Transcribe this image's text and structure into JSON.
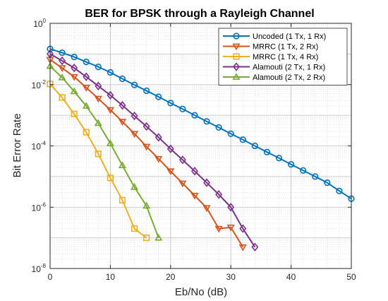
{
  "chart_data": {
    "type": "line",
    "title": "BER for BPSK through  a Rayleigh Channel",
    "xlabel": "Eb/No (dB)",
    "ylabel": "Bit Error Rate",
    "xlim": [
      0,
      50
    ],
    "ylim": [
      1e-08,
      1
    ],
    "yscale": "log",
    "grid": true,
    "minor_grid": true,
    "legend_position": "top-right",
    "x_ticks": [
      0,
      10,
      20,
      30,
      40,
      50
    ],
    "y_ticks": [
      {
        "base": "10",
        "exp": "0"
      },
      {
        "base": "10",
        "exp": "-2"
      },
      {
        "base": "10",
        "exp": "-4"
      },
      {
        "base": "10",
        "exp": "-6"
      },
      {
        "base": "10",
        "exp": "-8"
      }
    ],
    "series": [
      {
        "name": "Uncoded (1 Tx, 1 Rx)",
        "color": "#0072BD",
        "marker": "circle",
        "x": [
          0,
          2,
          4,
          6,
          8,
          10,
          12,
          14,
          16,
          18,
          20,
          22,
          24,
          26,
          28,
          30,
          32,
          34,
          36,
          38,
          40,
          42,
          44,
          46,
          48,
          50
        ],
        "y": [
          0.146,
          0.11,
          0.08,
          0.055,
          0.038,
          0.025,
          0.0155,
          0.0098,
          0.0063,
          0.004,
          0.0025,
          0.0016,
          0.001,
          0.00063,
          0.0004,
          0.00025,
          0.00016,
          0.0001,
          6.3e-05,
          4e-05,
          2.5e-05,
          1.58e-05,
          1e-05,
          6.3e-06,
          3.4e-06,
          1.9e-06
        ]
      },
      {
        "name": "MRRC (1 Tx, 2 Rx)",
        "color": "#D95319",
        "marker": "triangle-down",
        "x": [
          0,
          2,
          4,
          6,
          8,
          10,
          12,
          14,
          16,
          18,
          20,
          22,
          24,
          26,
          28,
          30,
          32
        ],
        "y": [
          0.065,
          0.035,
          0.018,
          0.008,
          0.0035,
          0.0015,
          0.00062,
          0.00025,
          9.5e-05,
          3.8e-05,
          1.5e-05,
          6e-06,
          2.4e-06,
          9.5e-07,
          2e-07,
          2.2e-07,
          5e-08
        ]
      },
      {
        "name": "MRRC (1 Tx, 4 Rx)",
        "color": "#EDB120",
        "marker": "square",
        "x": [
          0,
          2,
          4,
          6,
          8,
          10,
          12,
          14,
          16
        ],
        "y": [
          0.0105,
          0.0038,
          0.0011,
          0.00028,
          5.5e-05,
          9e-06,
          1.7e-06,
          2e-07,
          1e-07
        ]
      },
      {
        "name": "Alamouti (2 Tx, 1 Rx)",
        "color": "#7E2F8E",
        "marker": "diamond",
        "x": [
          0,
          2,
          4,
          6,
          8,
          10,
          12,
          14,
          16,
          18,
          20,
          22,
          24,
          26,
          28,
          30,
          32,
          34
        ],
        "y": [
          0.1,
          0.06,
          0.035,
          0.018,
          0.009,
          0.0045,
          0.0021,
          0.00095,
          0.00043,
          0.00019,
          8e-05,
          3.5e-05,
          1.5e-05,
          6.3e-06,
          2.6e-06,
          1e-06,
          2e-07,
          5e-08
        ]
      },
      {
        "name": "Alamouti (2 Tx, 2 Rx)",
        "color": "#77AC30",
        "marker": "triangle-up",
        "x": [
          0,
          2,
          4,
          6,
          8,
          10,
          12,
          14,
          16,
          18
        ],
        "y": [
          0.04,
          0.017,
          0.006,
          0.002,
          0.00055,
          0.00012,
          2.3e-05,
          4.5e-06,
          1.1e-06,
          1e-07
        ]
      }
    ]
  }
}
